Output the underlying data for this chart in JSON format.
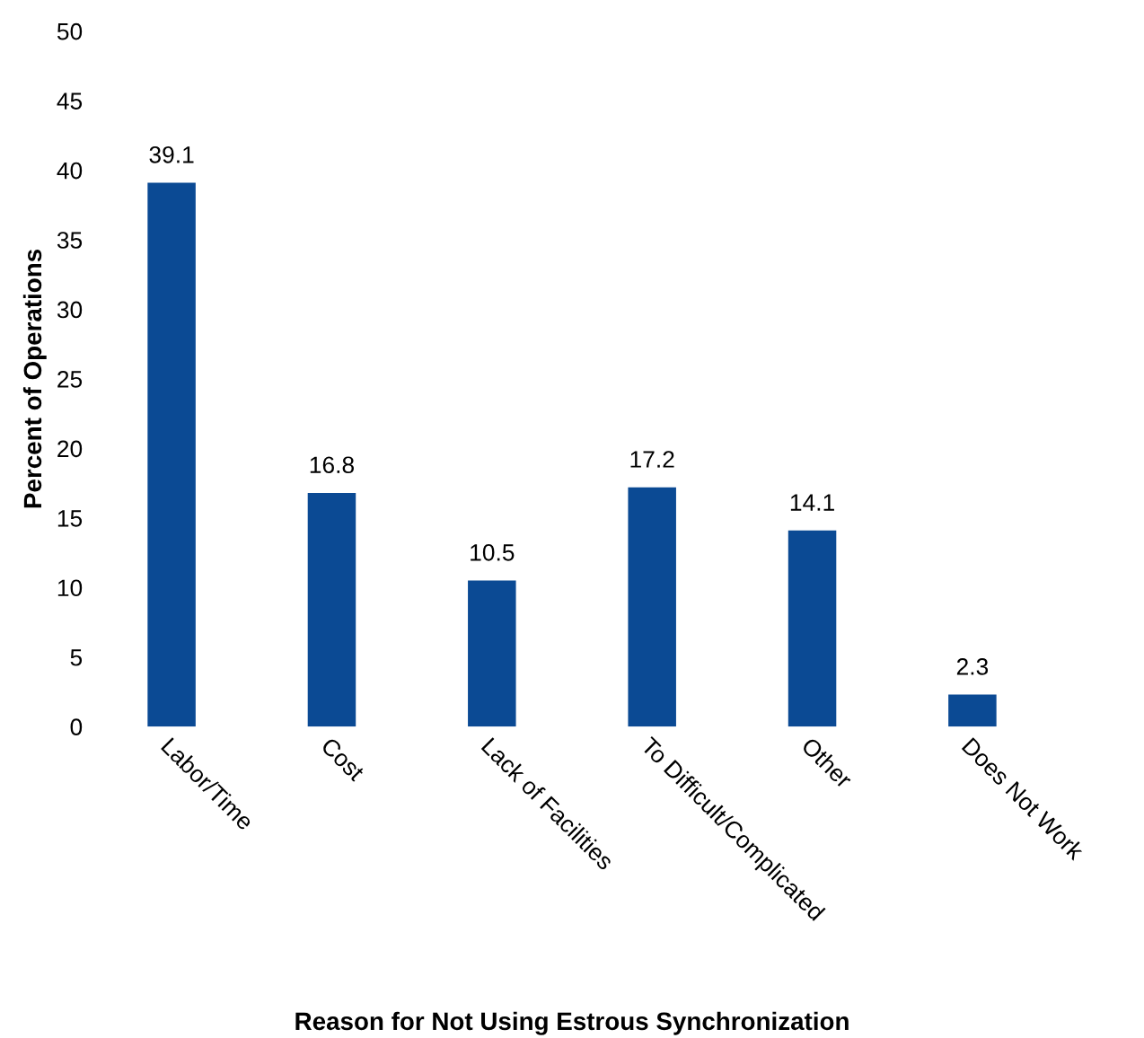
{
  "chart_data": {
    "type": "bar",
    "xlabel": "Reason for Not Using Estrous Synchronization",
    "ylabel": "Percent of Operations",
    "categories": [
      "Labor/Time",
      "Cost",
      "Lack of Facilities",
      "To Difficult/Complicated",
      "Other",
      "Does Not Work"
    ],
    "values": [
      39.1,
      16.8,
      10.5,
      17.2,
      14.1,
      2.3
    ],
    "color": "#0b4a94",
    "ylim": [
      0,
      50
    ],
    "yticks": [
      0,
      5,
      10,
      15,
      20,
      25,
      30,
      35,
      40,
      45,
      50
    ],
    "grid": false,
    "data_labels": true
  }
}
